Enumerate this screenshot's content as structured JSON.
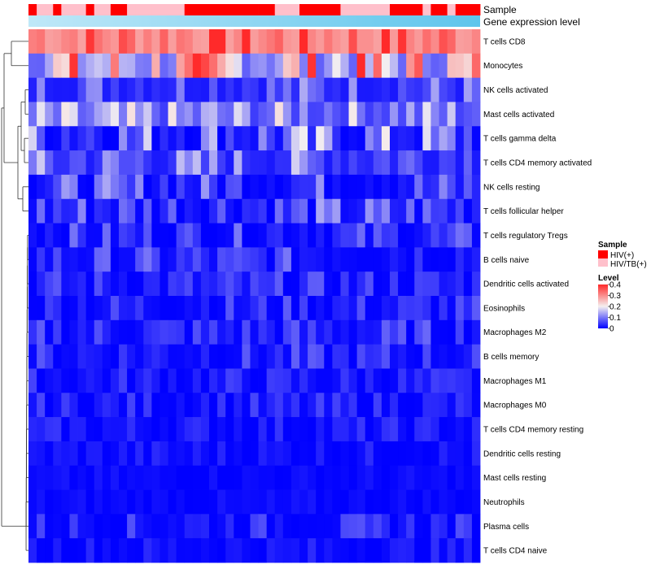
{
  "chart_data": {
    "type": "heatmap",
    "annotation_tracks": [
      "Sample",
      "Gene expression level"
    ],
    "rows": [
      "T cells CD8",
      "Monocytes",
      "NK cells activated",
      "Mast cells activated",
      "T cells gamma delta",
      "T cells CD4 memory activated",
      "NK cells resting",
      "T cells follicular helper",
      "T cells regulatory  Tregs",
      "B cells naive",
      "Dendritic cells activated",
      "Eosinophils",
      "Macrophages M2",
      "B cells memory",
      "Macrophages M1",
      "Macrophages M0",
      "T cells CD4 memory resting",
      "Dendritic cells resting",
      "Mast cells resting",
      "Neutrophils",
      "Plasma cells",
      "T cells CD4 naive"
    ],
    "n_samples": 55,
    "sample_groups": [
      1,
      0,
      0,
      1,
      0,
      0,
      0,
      1,
      0,
      0,
      1,
      1,
      0,
      0,
      0,
      0,
      0,
      0,
      0,
      1,
      1,
      1,
      1,
      1,
      1,
      1,
      1,
      1,
      1,
      1,
      0,
      0,
      0,
      1,
      1,
      1,
      1,
      1,
      0,
      0,
      0,
      0,
      0,
      0,
      1,
      1,
      1,
      1,
      0,
      1,
      1,
      0,
      1,
      1,
      1
    ],
    "row_ranges": [
      [
        0.28,
        0.42
      ],
      [
        0.08,
        0.42
      ],
      [
        0.02,
        0.16
      ],
      [
        0.05,
        0.22
      ],
      [
        0.0,
        0.22
      ],
      [
        0.02,
        0.18
      ],
      [
        0.0,
        0.14
      ],
      [
        0.0,
        0.15
      ],
      [
        0.0,
        0.1
      ],
      [
        0.0,
        0.1
      ],
      [
        0.0,
        0.08
      ],
      [
        0.0,
        0.08
      ],
      [
        0.0,
        0.09
      ],
      [
        0.0,
        0.08
      ],
      [
        0.0,
        0.06
      ],
      [
        0.0,
        0.06
      ],
      [
        0.0,
        0.05
      ],
      [
        0.0,
        0.04
      ],
      [
        0.0,
        0.02
      ],
      [
        0.0,
        0.02
      ],
      [
        0.0,
        0.07
      ],
      [
        0.0,
        0.04
      ]
    ],
    "legend": {
      "sample_title": "Sample",
      "sample_levels": [
        {
          "label": "HIV(+)",
          "color": "#ff0000"
        },
        {
          "label": "HIV/TB(+)",
          "color": "#ffc0cb"
        }
      ],
      "level_title": "Level",
      "level_ticks": [
        "0.4",
        "0.3",
        "0.2",
        "0.1",
        "0"
      ],
      "level_min": 0,
      "level_max": 0.4
    },
    "colors": {
      "low": "#0000ff",
      "mid": "#f5f0f0",
      "high": "#ff2a2a",
      "expr_light": "#bfe8f8",
      "expr_dark": "#5ec5ec"
    }
  }
}
